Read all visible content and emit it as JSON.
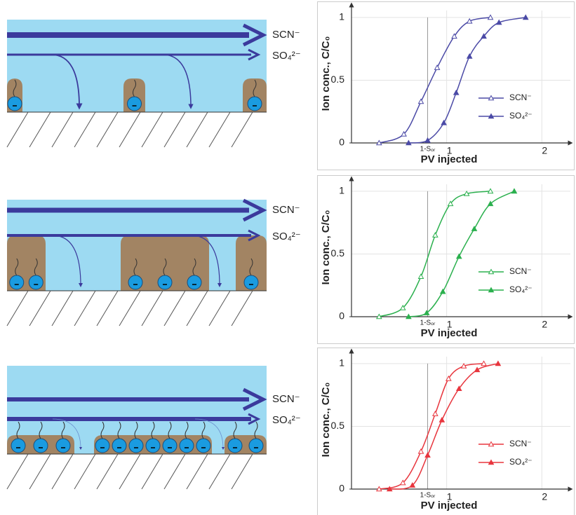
{
  "diagrams": [
    {
      "labels": [
        "SCN⁻",
        "SO₄²⁻"
      ]
    },
    {
      "labels": [
        "SCN⁻",
        "SO₄²⁻"
      ]
    },
    {
      "labels": [
        "SCN⁻",
        "SO₄²⁻"
      ]
    }
  ],
  "chart_data": [
    {
      "type": "line",
      "xlabel": "PV injected",
      "ylabel": "Ion conc., C/C₀",
      "xlim": [
        0,
        2.3
      ],
      "ylim": [
        0,
        1.1
      ],
      "yticks": [
        0,
        0.5,
        1
      ],
      "xticks": [
        {
          "value": 0.8,
          "label": "1-Sₒᵣ"
        },
        1,
        2
      ],
      "grid": true,
      "legend": "lower right",
      "series": [
        {
          "name": "SCN⁻",
          "color": "#4b4aa6",
          "marker": "open",
          "x": [
            0.29,
            0.55,
            0.73,
            0.9,
            1.08,
            1.24,
            1.46
          ],
          "values": [
            0,
            0.07,
            0.33,
            0.6,
            0.85,
            0.97,
            1.0
          ]
        },
        {
          "name": "SO₄²⁻",
          "color": "#4b4aa6",
          "marker": "filled",
          "x": [
            0.6,
            0.8,
            0.97,
            1.1,
            1.24,
            1.39,
            1.55,
            1.83
          ],
          "values": [
            0,
            0.02,
            0.16,
            0.4,
            0.69,
            0.85,
            0.96,
            1.0
          ]
        }
      ]
    },
    {
      "type": "line",
      "xlabel": "PV injected",
      "ylabel": "Ion conc., C/C₀",
      "xlim": [
        0,
        2.3
      ],
      "ylim": [
        0,
        1.1
      ],
      "yticks": [
        0,
        0.5,
        1
      ],
      "xticks": [
        {
          "value": 0.8,
          "label": "1-Sₒᵣ"
        },
        1,
        2
      ],
      "grid": true,
      "legend": "lower right",
      "series": [
        {
          "name": "SCN⁻",
          "color": "#2bb04e",
          "marker": "open",
          "x": [
            0.29,
            0.54,
            0.73,
            0.88,
            1.04,
            1.21,
            1.46
          ],
          "values": [
            0,
            0.07,
            0.32,
            0.65,
            0.9,
            0.98,
            1.0
          ]
        },
        {
          "name": "SO₄²⁻",
          "color": "#2bb04e",
          "marker": "filled",
          "x": [
            0.6,
            0.79,
            0.96,
            1.13,
            1.29,
            1.46,
            1.71
          ],
          "values": [
            0,
            0.03,
            0.2,
            0.48,
            0.7,
            0.9,
            1.0
          ]
        }
      ]
    },
    {
      "type": "line",
      "xlabel": "PV injected",
      "ylabel": "Ion conc., C/C₀",
      "xlim": [
        0,
        2.3
      ],
      "ylim": [
        0,
        1.1
      ],
      "yticks": [
        0,
        0.5,
        1
      ],
      "xticks": [
        {
          "value": 0.8,
          "label": "1-Sₒᵣ"
        },
        1,
        2
      ],
      "grid": true,
      "legend": "lower right",
      "series": [
        {
          "name": "SCN⁻",
          "color": "#e8363e",
          "marker": "open",
          "x": [
            0.29,
            0.54,
            0.73,
            0.88,
            1.02,
            1.18,
            1.39
          ],
          "values": [
            0,
            0.05,
            0.3,
            0.6,
            0.88,
            0.98,
            1.0
          ]
        },
        {
          "name": "SO₄²⁻",
          "color": "#e8363e",
          "marker": "filled",
          "x": [
            0.4,
            0.64,
            0.8,
            0.95,
            1.13,
            1.32,
            1.54
          ],
          "values": [
            0,
            0.03,
            0.27,
            0.55,
            0.8,
            0.95,
            1.0
          ]
        }
      ]
    }
  ]
}
